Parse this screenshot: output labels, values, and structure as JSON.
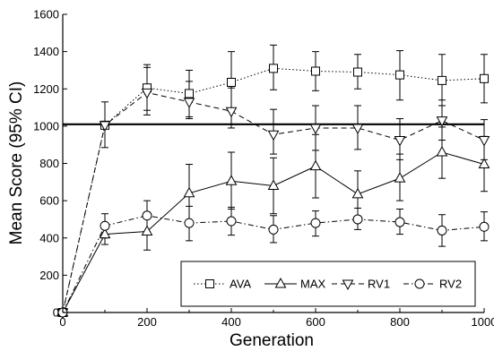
{
  "chart_data": {
    "type": "line",
    "title": "",
    "xlabel": "Generation",
    "ylabel": "Mean Score (95% CI)",
    "xlim": [
      0,
      1000
    ],
    "ylim": [
      0,
      1600
    ],
    "x_ticks": [
      "0",
      "200",
      "400",
      "600",
      "800",
      "1000"
    ],
    "y_ticks": [
      "0",
      "200",
      "400",
      "600",
      "800",
      "1000",
      "1200",
      "1400",
      "1600"
    ],
    "reference_line": {
      "y": 1010
    },
    "grid": false,
    "legend_position": "bottom-right",
    "x": [
      0,
      100,
      200,
      300,
      400,
      500,
      600,
      700,
      800,
      900,
      1000
    ],
    "series": [
      {
        "name": "AVA",
        "marker": "square",
        "dash": "dotted",
        "values": [
          0,
          1005,
          1205,
          1175,
          1235,
          1310,
          1295,
          1290,
          1275,
          1245,
          1255
        ],
        "ci_low": [
          0,
          1000,
          1085,
          1040,
          1080,
          1195,
          1190,
          1200,
          1140,
          1110,
          1125
        ],
        "ci_high": [
          0,
          1010,
          1330,
          1300,
          1400,
          1435,
          1400,
          1385,
          1405,
          1385,
          1385
        ]
      },
      {
        "name": "MAX",
        "marker": "triangle-up",
        "dash": "solid",
        "values": [
          0,
          420,
          435,
          640,
          705,
          680,
          785,
          635,
          720,
          860,
          795
        ],
        "ci_low": [
          0,
          365,
          335,
          495,
          555,
          530,
          615,
          515,
          600,
          720,
          650
        ],
        "ci_high": [
          0,
          475,
          520,
          795,
          860,
          830,
          955,
          760,
          850,
          995,
          945
        ]
      },
      {
        "name": "RV1",
        "marker": "triangle-down",
        "dash": "dashed",
        "values": [
          0,
          1005,
          1180,
          1130,
          1080,
          955,
          990,
          990,
          925,
          1030,
          925
        ],
        "ci_low": [
          0,
          885,
          1060,
          1050,
          990,
          850,
          870,
          875,
          820,
          925,
          820
        ],
        "ci_high": [
          0,
          1130,
          1315,
          1240,
          1205,
          1090,
          1110,
          1110,
          1040,
          1140,
          1035
        ]
      },
      {
        "name": "RV2",
        "marker": "circle",
        "dash": "dashdot",
        "values": [
          0,
          465,
          520,
          480,
          490,
          445,
          480,
          500,
          485,
          440,
          460
        ],
        "ci_low": [
          0,
          400,
          435,
          385,
          415,
          375,
          410,
          445,
          420,
          355,
          385
        ],
        "ci_high": [
          0,
          530,
          600,
          570,
          565,
          520,
          545,
          560,
          555,
          525,
          540
        ]
      }
    ]
  }
}
